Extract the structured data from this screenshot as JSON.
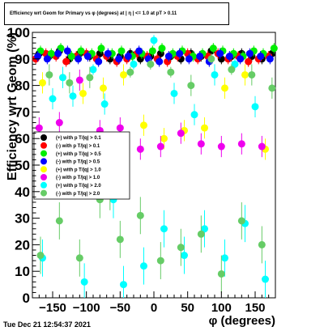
{
  "chart_data": {
    "type": "scatter",
    "title": "Efficiency wrt Geom for Primary vs φ (degrees) at | η | <= 1.0 at pT > 0.11",
    "xlabel": "φ (degrees)",
    "ylabel": "Efficiency wrt Geom (%)",
    "xlim": [
      -180,
      180
    ],
    "ylim": [
      0,
      100
    ],
    "x_ticks": [
      -150,
      -100,
      -50,
      0,
      50,
      100,
      150
    ],
    "y_ticks": [
      0,
      10,
      20,
      30,
      40,
      50,
      60,
      70,
      80,
      90,
      100
    ],
    "grid": false,
    "legend_position": "left",
    "series": [
      {
        "name": "(+) with p T/|q| > 0.1",
        "color": "#000000",
        "x": [
          -170,
          -155,
          -140,
          -125,
          -110,
          -95,
          -80,
          -65,
          -50,
          -35,
          -20,
          -5,
          10,
          25,
          40,
          55,
          70,
          85,
          100,
          115,
          130,
          145,
          160,
          175
        ],
        "y": [
          92,
          91,
          93,
          90,
          92,
          91,
          92,
          90,
          91,
          92,
          90,
          91,
          92,
          91,
          90,
          92,
          91,
          93,
          90,
          91,
          92,
          91,
          90,
          92
        ]
      },
      {
        "name": "(-) with p T/|q| > 0.1",
        "color": "#ff0000",
        "x": [
          -175,
          -160,
          -145,
          -130,
          -115,
          -100,
          -85,
          -70,
          -55,
          -40,
          -25,
          -10,
          5,
          20,
          35,
          50,
          65,
          80,
          95,
          110,
          125,
          140,
          155,
          170
        ],
        "y": [
          90,
          92,
          91,
          89,
          91,
          92,
          90,
          91,
          89,
          90,
          92,
          91,
          90,
          89,
          91,
          92,
          90,
          91,
          92,
          90,
          91,
          89,
          90,
          91
        ]
      },
      {
        "name": "(+) with p T/|q| > 0.5",
        "color": "#00ee00",
        "x": [
          -168,
          -152,
          -138,
          -122,
          -108,
          -92,
          -78,
          -62,
          -48,
          -32,
          -18,
          -2,
          12,
          28,
          42,
          58,
          72,
          88,
          102,
          118,
          132,
          148,
          162,
          178
        ],
        "y": [
          93,
          92,
          94,
          91,
          93,
          92,
          94,
          92,
          93,
          91,
          92,
          93,
          94,
          92,
          93,
          91,
          92,
          94,
          93,
          92,
          91,
          93,
          92,
          94
        ]
      },
      {
        "name": "(-) with p T/|q| > 0.5",
        "color": "#0000ff",
        "x": [
          -172,
          -158,
          -142,
          -128,
          -112,
          -98,
          -82,
          -68,
          -52,
          -38,
          -22,
          -8,
          8,
          22,
          38,
          52,
          68,
          82,
          98,
          112,
          128,
          142,
          158,
          172
        ],
        "y": [
          91,
          90,
          92,
          93,
          90,
          91,
          89,
          92,
          90,
          91,
          93,
          90,
          89,
          91,
          92,
          90,
          91,
          89,
          92,
          91,
          90,
          92,
          91,
          90
        ]
      },
      {
        "name": "(+) with p T/|q| > 1.0",
        "color": "#ffff00",
        "x": [
          -165,
          -135,
          -105,
          -75,
          -45,
          -15,
          15,
          45,
          75,
          105,
          135,
          165
        ],
        "y": [
          81,
          83,
          77,
          79,
          84,
          65,
          60,
          63,
          64,
          79,
          84,
          56
        ]
      },
      {
        "name": "(-) with p T/|q| > 1.0",
        "color": "#ee00ee",
        "x": [
          -170,
          -140,
          -110,
          -80,
          -50,
          -20,
          10,
          40,
          70,
          100,
          130,
          160
        ],
        "y": [
          64,
          66,
          82,
          63,
          64,
          56,
          57,
          62,
          58,
          57,
          58,
          57
        ]
      },
      {
        "name": "(+) with p T/|q| > 2.0",
        "color": "#00ffff",
        "x": [
          -165,
          -150,
          -135,
          -120,
          -103,
          -90,
          -73,
          -60,
          -45,
          -30,
          -15,
          0,
          15,
          30,
          45,
          60,
          75,
          90,
          105,
          120,
          135,
          150,
          165
        ],
        "y": [
          15,
          75,
          83,
          76,
          6,
          86,
          73,
          37,
          5,
          88,
          12,
          97,
          26,
          77,
          16,
          69,
          26,
          84,
          15,
          88,
          28,
          72,
          7
        ]
      },
      {
        "name": "(-) with p T/|q| > 2.0",
        "color": "#66cc66",
        "x": [
          -168,
          -155,
          -140,
          -125,
          -110,
          -95,
          -80,
          -65,
          -50,
          -35,
          -20,
          -5,
          10,
          25,
          40,
          55,
          70,
          85,
          100,
          115,
          130,
          145,
          160,
          175
        ],
        "y": [
          16,
          84,
          29,
          81,
          15,
          83,
          37,
          40,
          22,
          85,
          31,
          88,
          14,
          85,
          19,
          80,
          24,
          90,
          9,
          86,
          29,
          84,
          20,
          79
        ]
      }
    ],
    "errors": {
      "low_points": [
        8,
        4,
        5,
        4,
        7,
        5,
        6,
        8,
        7,
        4,
        6,
        5,
        5,
        7,
        6,
        4
      ]
    }
  },
  "footer": {
    "timestamp": "Tue Dec 21 12:54:37 2021"
  }
}
